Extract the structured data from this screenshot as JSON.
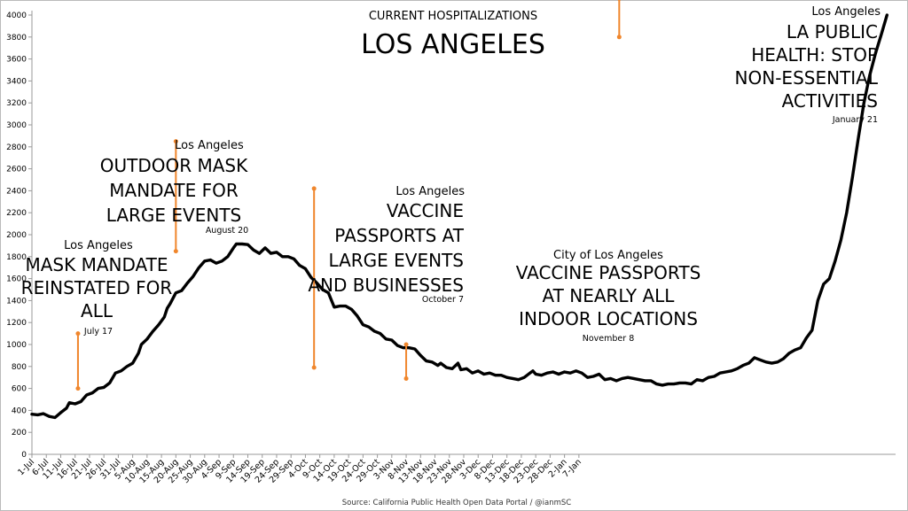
{
  "chart_data": {
    "type": "line",
    "title": "LOS ANGELES",
    "subtitle": "CURRENT HOSPITALIZATIONS",
    "source": "Source: California Public Health Open Data Portal / @ianmSC",
    "xlabel": "",
    "ylabel": "",
    "ylim": [
      0,
      4000
    ],
    "yticks": [
      0,
      200,
      400,
      600,
      800,
      1000,
      1200,
      1400,
      1600,
      1800,
      2000,
      2200,
      2400,
      2600,
      2800,
      3000,
      3200,
      3400,
      3600,
      3800,
      4000
    ],
    "xticks": [
      "1-Jul",
      "6-Jul",
      "11-Jul",
      "16-Jul",
      "21-Jul",
      "26-Jul",
      "31-Jul",
      "5-Aug",
      "10-Aug",
      "15-Aug",
      "20-Aug",
      "25-Aug",
      "30-Aug",
      "4-Sep",
      "9-Sep",
      "14-Sep",
      "19-Sep",
      "24-Sep",
      "29-Sep",
      "4-Oct",
      "9-Oct",
      "14-Oct",
      "19-Oct",
      "24-Oct",
      "29-Oct",
      "3-Nov",
      "8-Nov",
      "13-Nov",
      "18-Nov",
      "23-Nov",
      "28-Nov",
      "3-Dec",
      "8-Dec",
      "13-Dec",
      "18-Dec",
      "23-Dec",
      "28-Dec",
      "2-Jan",
      "7-Jan"
    ],
    "grid": false,
    "legend": "none",
    "series": [
      {
        "values": [
          [
            0,
            365
          ],
          [
            2,
            360
          ],
          [
            4,
            370
          ],
          [
            6,
            345
          ],
          [
            8,
            335
          ],
          [
            10,
            380
          ],
          [
            12,
            420
          ],
          [
            13,
            470
          ],
          [
            15,
            460
          ],
          [
            17,
            480
          ],
          [
            19,
            540
          ],
          [
            21,
            560
          ],
          [
            23,
            600
          ],
          [
            25,
            610
          ],
          [
            27,
            650
          ],
          [
            29,
            740
          ],
          [
            31,
            760
          ],
          [
            33,
            800
          ],
          [
            35,
            830
          ],
          [
            37,
            920
          ],
          [
            38,
            1000
          ],
          [
            40,
            1050
          ],
          [
            42,
            1120
          ],
          [
            44,
            1180
          ],
          [
            46,
            1250
          ],
          [
            47,
            1330
          ],
          [
            48,
            1370
          ],
          [
            50,
            1470
          ],
          [
            52,
            1490
          ],
          [
            54,
            1560
          ],
          [
            56,
            1620
          ],
          [
            58,
            1700
          ],
          [
            60,
            1760
          ],
          [
            62,
            1770
          ],
          [
            64,
            1740
          ],
          [
            66,
            1760
          ],
          [
            68,
            1800
          ],
          [
            70,
            1880
          ],
          [
            71,
            1915
          ],
          [
            73,
            1915
          ],
          [
            75,
            1910
          ],
          [
            77,
            1860
          ],
          [
            79,
            1830
          ],
          [
            81,
            1880
          ],
          [
            83,
            1830
          ],
          [
            85,
            1840
          ],
          [
            87,
            1800
          ],
          [
            89,
            1800
          ],
          [
            91,
            1780
          ],
          [
            93,
            1720
          ],
          [
            95,
            1690
          ],
          [
            97,
            1610
          ],
          [
            99,
            1560
          ],
          [
            101,
            1500
          ],
          [
            103,
            1470
          ],
          [
            105,
            1340
          ],
          [
            107,
            1350
          ],
          [
            109,
            1350
          ],
          [
            111,
            1320
          ],
          [
            113,
            1260
          ],
          [
            115,
            1180
          ],
          [
            117,
            1160
          ],
          [
            119,
            1120
          ],
          [
            121,
            1100
          ],
          [
            123,
            1050
          ],
          [
            125,
            1040
          ],
          [
            127,
            990
          ],
          [
            129,
            970
          ],
          [
            131,
            970
          ],
          [
            133,
            960
          ],
          [
            135,
            900
          ],
          [
            137,
            850
          ],
          [
            139,
            840
          ],
          [
            141,
            810
          ],
          [
            142,
            830
          ],
          [
            144,
            790
          ],
          [
            146,
            780
          ],
          [
            148,
            830
          ],
          [
            149,
            770
          ],
          [
            151,
            780
          ],
          [
            153,
            740
          ],
          [
            155,
            760
          ],
          [
            157,
            730
          ],
          [
            159,
            740
          ],
          [
            161,
            720
          ],
          [
            163,
            720
          ],
          [
            165,
            700
          ],
          [
            167,
            690
          ],
          [
            169,
            680
          ],
          [
            171,
            700
          ],
          [
            173,
            740
          ],
          [
            174,
            760
          ],
          [
            175,
            730
          ],
          [
            177,
            720
          ],
          [
            179,
            740
          ],
          [
            181,
            750
          ],
          [
            183,
            730
          ],
          [
            185,
            750
          ],
          [
            187,
            740
          ],
          [
            189,
            760
          ],
          [
            191,
            740
          ],
          [
            193,
            700
          ],
          [
            195,
            710
          ],
          [
            197,
            730
          ],
          [
            199,
            680
          ],
          [
            201,
            690
          ],
          [
            203,
            670
          ],
          [
            205,
            690
          ],
          [
            207,
            700
          ],
          [
            209,
            690
          ],
          [
            211,
            680
          ],
          [
            213,
            670
          ],
          [
            215,
            670
          ],
          [
            217,
            640
          ],
          [
            219,
            630
          ],
          [
            221,
            640
          ],
          [
            223,
            640
          ],
          [
            225,
            650
          ],
          [
            227,
            650
          ],
          [
            229,
            640
          ],
          [
            231,
            680
          ],
          [
            233,
            670
          ],
          [
            235,
            700
          ],
          [
            237,
            710
          ],
          [
            239,
            740
          ],
          [
            241,
            750
          ],
          [
            243,
            760
          ],
          [
            245,
            780
          ],
          [
            247,
            810
          ],
          [
            249,
            830
          ],
          [
            251,
            880
          ],
          [
            253,
            860
          ],
          [
            255,
            840
          ],
          [
            257,
            830
          ],
          [
            259,
            840
          ],
          [
            261,
            870
          ],
          [
            263,
            920
          ],
          [
            265,
            950
          ],
          [
            267,
            970
          ],
          [
            269,
            1060
          ],
          [
            271,
            1130
          ],
          [
            273,
            1400
          ],
          [
            275,
            1550
          ],
          [
            277,
            1600
          ],
          [
            279,
            1760
          ],
          [
            281,
            1950
          ],
          [
            283,
            2200
          ],
          [
            285,
            2520
          ],
          [
            287,
            2870
          ],
          [
            289,
            3200
          ],
          [
            291,
            3450
          ],
          [
            293,
            3650
          ],
          [
            295,
            3820
          ],
          [
            297,
            4000
          ]
        ]
      }
    ],
    "annotations": [
      {
        "header": "Los Angeles",
        "lines": [
          "MASK MANDATE",
          "REINSTATED FOR",
          "ALL"
        ],
        "date": "July 17",
        "day": 16,
        "top": 1100,
        "bottom": 600
      },
      {
        "header": "Los Angeles",
        "lines": [
          "OUTDOOR MASK",
          "MANDATE FOR",
          "LARGE EVENTS"
        ],
        "date": "August 20",
        "day": 50,
        "top": 2850,
        "bottom": 1850
      },
      {
        "header": "Los Angeles",
        "lines": [
          "VACCINE",
          "PASSPORTS AT",
          "LARGE EVENTS",
          "AND BUSINESSES"
        ],
        "date": "October 7",
        "day": 98,
        "top": 2420,
        "bottom": 790
      },
      {
        "header": "City of Los Angeles",
        "lines": [
          "VACCINE PASSPORTS",
          "AT NEARLY ALL",
          "INDOOR LOCATIONS"
        ],
        "date": "November 8",
        "day": 130,
        "top": 1000,
        "bottom": 690
      },
      {
        "header": "Los Angeles",
        "lines": [
          "LA PUBLIC",
          "HEALTH: STOP",
          "NON-ESSENTIAL",
          "ACTIVITIES"
        ],
        "date": "January 21",
        "day": 204,
        "top": 4150,
        "bottom": 3800
      }
    ],
    "colors": {
      "line": "#000000",
      "marker": "#f0862c",
      "fill": "#bdbdbd",
      "border": "#bbbbbb"
    }
  }
}
